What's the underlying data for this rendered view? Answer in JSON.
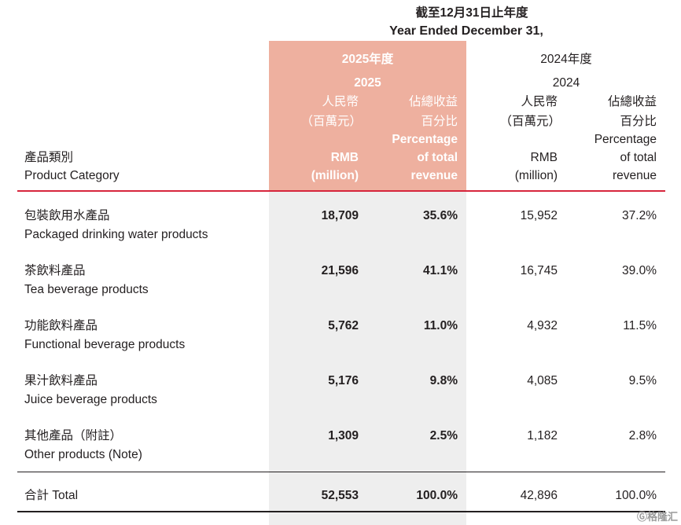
{
  "header": {
    "period_zh": "截至12月31日止年度",
    "period_en": "Year Ended December 31,"
  },
  "col2025": {
    "year_zh": "2025年度",
    "year": "2025",
    "rmb_zh": "人民幣",
    "million_zh": "（百萬元）",
    "rmb_en": "RMB",
    "million_en": "(million)",
    "pct_zh1": "佔總收益",
    "pct_zh2": "百分比",
    "pct_en1": "Percentage",
    "pct_en2": "of total",
    "pct_en3": "revenue"
  },
  "col2024": {
    "year_zh": "2024年度",
    "year": "2024",
    "rmb_zh": "人民幣",
    "million_zh": "（百萬元）",
    "rmb_en": "RMB",
    "million_en": "(million)",
    "pct_zh1": "佔總收益",
    "pct_zh2": "百分比",
    "pct_en1": "Percentage",
    "pct_en2": "of total",
    "pct_en3": "revenue"
  },
  "category_header": {
    "zh": "產品類別",
    "en": "Product Category"
  },
  "rows": [
    {
      "zh": "包裝飲用水產品",
      "en": "Packaged drinking water products",
      "rmb2025": "18,709",
      "pct2025": "35.6%",
      "rmb2024": "15,952",
      "pct2024": "37.2%"
    },
    {
      "zh": "茶飲料產品",
      "en": "Tea beverage products",
      "rmb2025": "21,596",
      "pct2025": "41.1%",
      "rmb2024": "16,745",
      "pct2024": "39.0%"
    },
    {
      "zh": "功能飲料產品",
      "en": "Functional beverage products",
      "rmb2025": "5,762",
      "pct2025": "11.0%",
      "rmb2024": "4,932",
      "pct2024": "11.5%"
    },
    {
      "zh": "果汁飲料產品",
      "en": "Juice beverage products",
      "rmb2025": "5,176",
      "pct2025": "9.8%",
      "rmb2024": "4,085",
      "pct2024": "9.5%"
    },
    {
      "zh": "其他產品（附註）",
      "en": "Other products (Note)",
      "rmb2025": "1,309",
      "pct2025": "2.5%",
      "rmb2024": "1,182",
      "pct2024": "2.8%"
    }
  ],
  "total": {
    "label": "合計 Total",
    "rmb2025": "52,553",
    "pct2025": "100.0%",
    "rmb2024": "42,896",
    "pct2024": "100.0%"
  },
  "watermark": "格隆汇"
}
